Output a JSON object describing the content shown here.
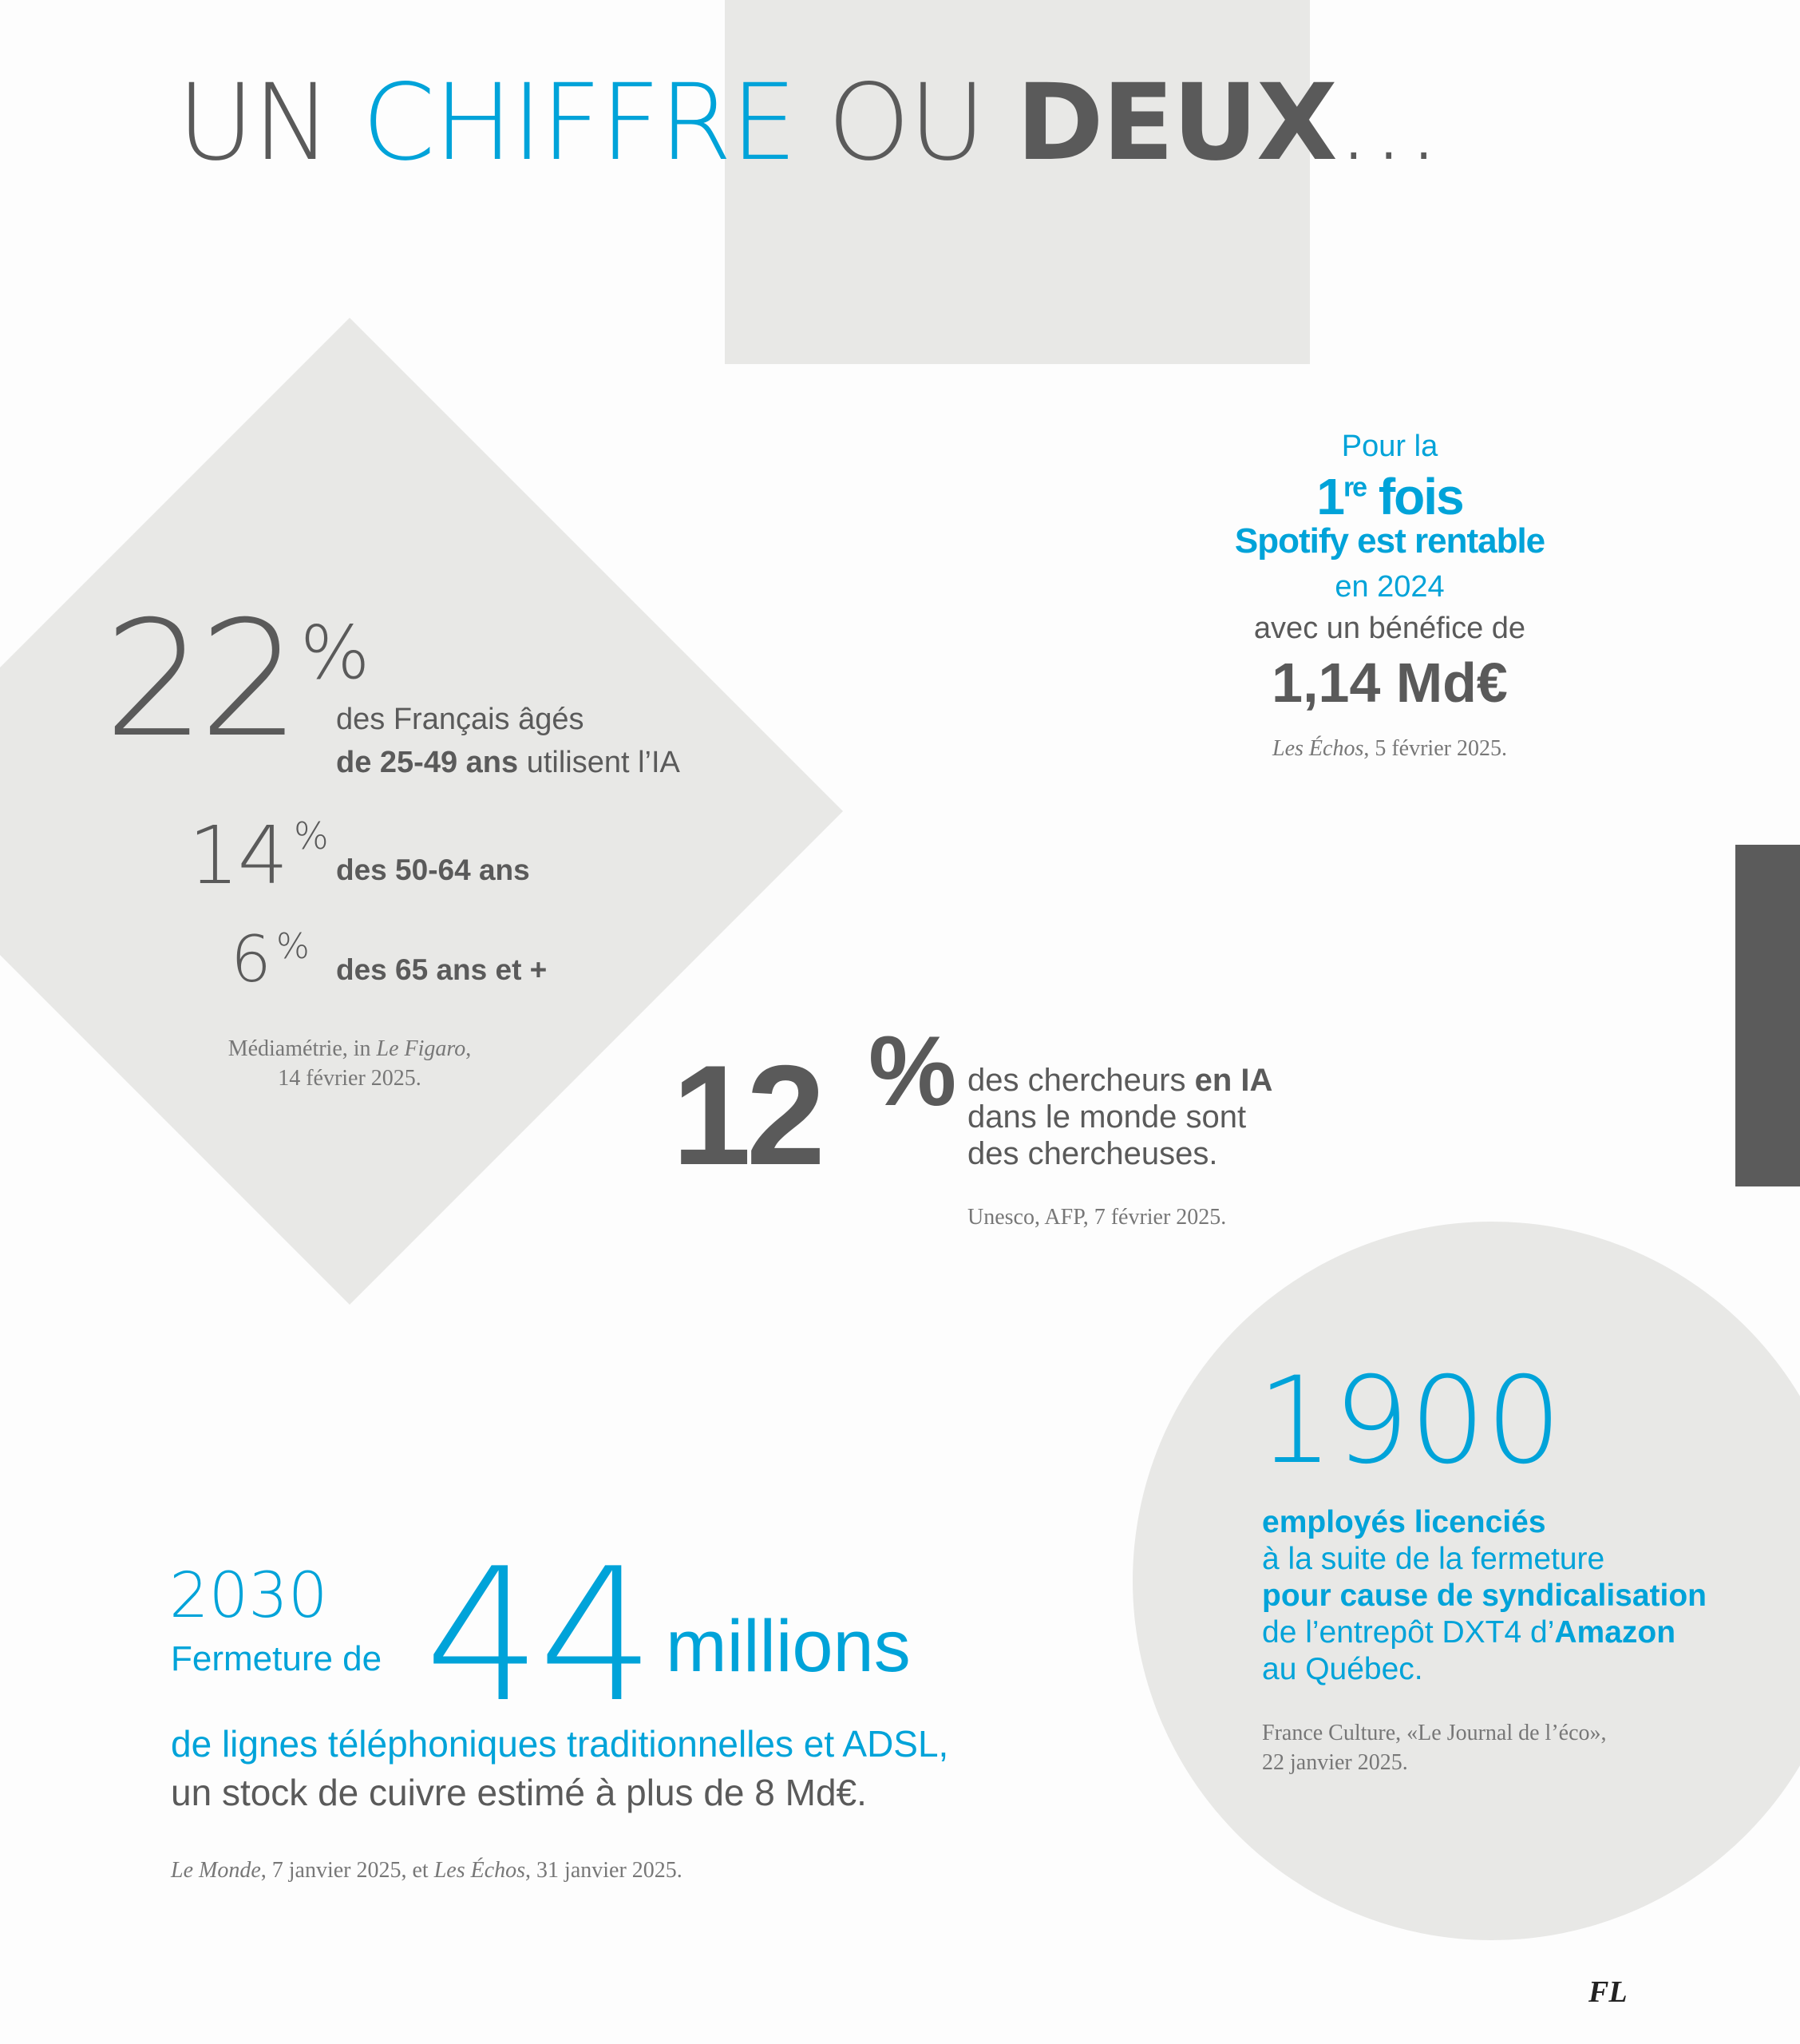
{
  "title": {
    "part1": "UN ",
    "part2": "CHIFFRE",
    "part3": " OU ",
    "part4": "DEUX",
    "part5": "…"
  },
  "colors": {
    "accent": "#00a3d9",
    "text": "#5a5a5a",
    "panel": "#e8e8e6",
    "dark": "#5b5b5b"
  },
  "ia_usage": {
    "main_value": "22",
    "pct": "%",
    "main_line1": "des Français âgés",
    "main_line2_bold": "de 25-49 ans",
    "main_line2_rest": " utilisent l’IA",
    "rows": [
      {
        "value": "14",
        "pct": "%",
        "label": "des 50-64 ans"
      },
      {
        "value": "6",
        "pct": "%",
        "label": "des 65 ans et +"
      }
    ],
    "source_line1_a": "Médiamétrie, in ",
    "source_line1_italic": "Le Figaro",
    "source_line1_b": ",",
    "source_line2": "14 février 2025."
  },
  "spotify": {
    "line1": "Pour la",
    "line2_num": "1",
    "line2_sup": "re",
    "line2_rest": " fois",
    "line3": "Spotify est rentable",
    "line4": "en 2024",
    "line5": "avec un bénéfice de",
    "amount": "1,14 Md€",
    "source_italic": "Les Échos",
    "source_rest": ", 5 février 2025."
  },
  "researchers": {
    "value": "12",
    "pct": "%",
    "line1_a": "des chercheurs ",
    "line1_bold": "en IA",
    "line2": "dans le monde sont",
    "line3": "des chercheuses.",
    "source": "Unesco, AFP, 7 février 2025."
  },
  "amazon": {
    "value": "1900",
    "line1_bold": "employés licenciés",
    "line2": "à la suite de la fermeture",
    "line3_bold": "pour cause de syndicalisation",
    "line4_a": "de l’entrepôt DXT4 d’",
    "line4_bold": "Amazon",
    "line5": "au Québec.",
    "source_line1": "France Culture, «Le Journal de l’éco»,",
    "source_line2": "22 janvier 2025."
  },
  "copper": {
    "year": "2030",
    "prefix": "Fermeture de",
    "value": "44",
    "unit": "millions",
    "line1": "de lignes téléphoniques traditionnelles et ADSL,",
    "line2": "un stock de cuivre estimé à plus de 8 Md€.",
    "source_italic1": "Le Monde",
    "source_mid": ", 7 janvier 2025, et ",
    "source_italic2": "Les Échos",
    "source_end": ", 31 janvier 2025."
  },
  "footer": {
    "logo": "FL"
  }
}
